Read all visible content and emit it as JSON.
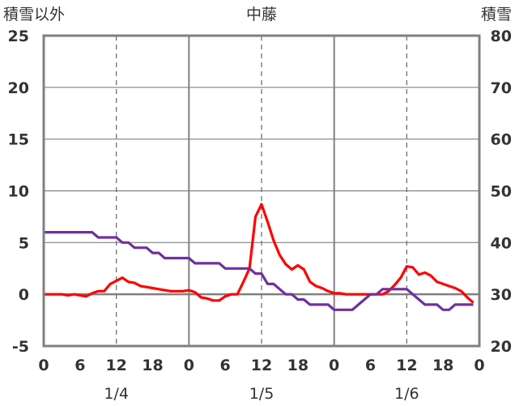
{
  "title": "中藤",
  "left_axis_label": "積雪以外",
  "right_axis_label": "積雪",
  "chart_data": {
    "type": "line",
    "left_axis": {
      "label": "積雪以外",
      "ylim": [
        -5,
        25
      ],
      "ticks": [
        25,
        20,
        15,
        10,
        5,
        0,
        -5
      ]
    },
    "right_axis": {
      "label": "積雪",
      "ylim": [
        20,
        80
      ],
      "ticks": [
        80,
        70,
        60,
        50,
        40,
        30,
        20
      ]
    },
    "x_axis": {
      "unit": "hours",
      "range": [
        0,
        72
      ],
      "tick_positions": [
        0,
        6,
        12,
        18,
        24,
        30,
        36,
        42,
        48,
        54,
        60,
        66,
        72
      ],
      "tick_labels": [
        "0",
        "6",
        "12",
        "18",
        "0",
        "6",
        "12",
        "18",
        "0",
        "6",
        "12",
        "18",
        "0"
      ],
      "day_labels": [
        {
          "label": "1/4",
          "x": 12
        },
        {
          "label": "1/5",
          "x": 36
        },
        {
          "label": "1/6",
          "x": 60
        }
      ]
    },
    "grid": {
      "day_boundaries_solid": [
        24,
        48
      ],
      "noon_dashed": [
        12,
        36,
        60
      ],
      "zero_line": true
    },
    "series": [
      {
        "color": "#ff0000",
        "axis": "left",
        "x": [
          0,
          1,
          2,
          3,
          4,
          5,
          6,
          7,
          8,
          9,
          10,
          11,
          12,
          13,
          14,
          15,
          16,
          17,
          18,
          19,
          20,
          21,
          22,
          23,
          24,
          25,
          26,
          27,
          28,
          29,
          30,
          31,
          32,
          33,
          34,
          35,
          36,
          37,
          38,
          39,
          40,
          41,
          42,
          43,
          44,
          45,
          46,
          47,
          48,
          49,
          50,
          51,
          52,
          53,
          54,
          55,
          56,
          57,
          58,
          59,
          60,
          61,
          62,
          63,
          64,
          65,
          66,
          67,
          68,
          69,
          70,
          71
        ],
        "values": [
          0,
          0,
          0,
          0,
          -0.1,
          0,
          -0.1,
          -0.2,
          0.1,
          0.3,
          0.3,
          1.0,
          1.3,
          1.6,
          1.2,
          1.1,
          0.8,
          0.7,
          0.6,
          0.5,
          0.4,
          0.3,
          0.3,
          0.3,
          0.4,
          0.2,
          -0.3,
          -0.4,
          -0.6,
          -0.6,
          -0.2,
          0,
          0,
          1.2,
          2.5,
          7.5,
          8.7,
          7.0,
          5.2,
          3.8,
          2.9,
          2.4,
          2.8,
          2.4,
          1.2,
          0.8,
          0.6,
          0.3,
          0.1,
          0.1,
          0,
          0,
          0,
          0,
          0,
          0,
          0,
          0.3,
          0.9,
          1.6,
          2.7,
          2.6,
          1.9,
          2.1,
          1.8,
          1.2,
          1.0,
          0.8,
          0.6,
          0.3,
          -0.3,
          -0.8
        ]
      },
      {
        "color": "#7030a0",
        "axis": "right",
        "x": [
          0,
          8,
          9,
          11,
          12,
          13,
          14,
          15,
          16,
          17,
          18,
          19,
          20,
          24,
          25,
          29,
          30,
          34,
          35,
          36,
          37,
          38,
          39,
          40,
          41,
          42,
          43,
          44,
          45,
          46,
          47,
          48,
          51,
          52,
          53,
          54,
          55,
          56,
          60,
          61,
          62,
          63,
          64,
          65,
          66,
          67,
          68,
          69,
          70,
          71
        ],
        "values": [
          42,
          42,
          41,
          41,
          41,
          40,
          40,
          39,
          39,
          39,
          38,
          38,
          37,
          37,
          36,
          36,
          35,
          35,
          34,
          34,
          32,
          32,
          31,
          30,
          30,
          29,
          29,
          28,
          28,
          28,
          28,
          27,
          27,
          28,
          29,
          30,
          30,
          31,
          31,
          30,
          29,
          28,
          28,
          28,
          27,
          27,
          28,
          28,
          28,
          28
        ]
      }
    ]
  }
}
